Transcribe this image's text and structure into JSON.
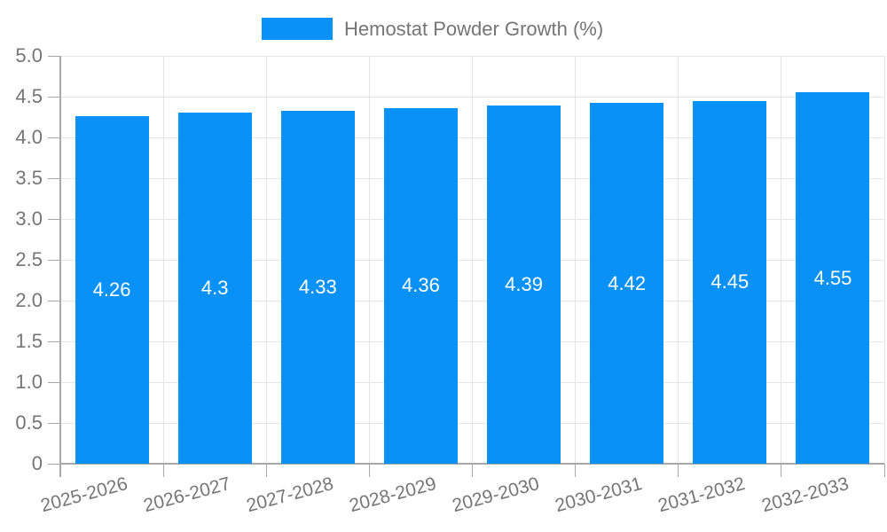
{
  "chart_data": {
    "type": "bar",
    "categories": [
      "2025-2026",
      "2026-2027",
      "2027-2028",
      "2028-2029",
      "2029-2030",
      "2030-2031",
      "2031-2032",
      "2032-2033"
    ],
    "series": [
      {
        "name": "Hemostat Powder Growth (%)",
        "values": [
          4.26,
          4.3,
          4.33,
          4.36,
          4.39,
          4.42,
          4.45,
          4.55
        ]
      }
    ],
    "bar_value_labels": [
      "4.26",
      "4.3",
      "4.33",
      "4.36",
      "4.39",
      "4.42",
      "4.45",
      "4.55"
    ],
    "xlabel": "",
    "ylabel": "",
    "ylim": [
      0,
      5
    ],
    "ytick_step": 0.5,
    "ytick_labels": [
      "0",
      "0.5",
      "1.0",
      "1.5",
      "2.0",
      "2.5",
      "3.0",
      "3.5",
      "4.0",
      "4.5",
      "5.0"
    ],
    "grid": true,
    "legend_position": "top-center",
    "colors": {
      "bar": "#0991f5",
      "grid": "#e6e6e6",
      "axis": "#a8a8a8",
      "tick_text": "#757575",
      "bar_label": "#ffffff"
    }
  }
}
